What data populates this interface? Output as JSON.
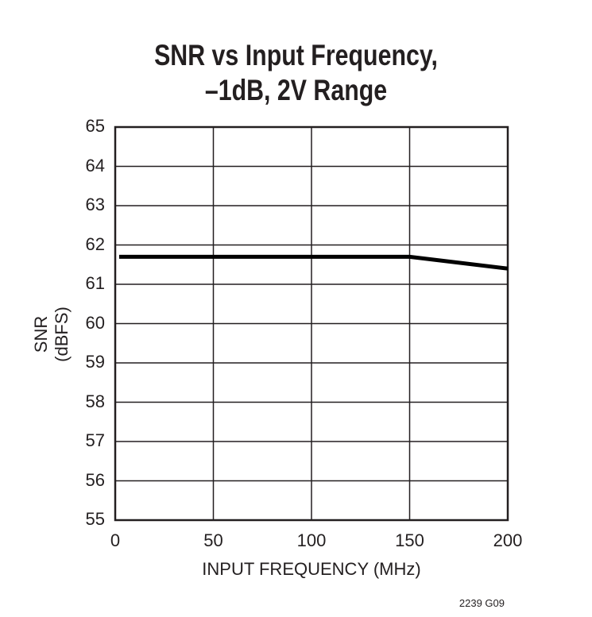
{
  "title_line1": "SNR vs Input Frequency,",
  "title_line2": "–1dB, 2V Range",
  "figure_code": "2239 G09",
  "chart_data": {
    "type": "line",
    "title": "SNR vs Input Frequency, –1dB, 2V Range",
    "xlabel": "INPUT FREQUENCY (MHz)",
    "ylabel": "SNR (dBFS)",
    "xlim": [
      0,
      200
    ],
    "ylim": [
      55,
      65
    ],
    "xticks": [
      "0",
      "50",
      "100",
      "150",
      "200"
    ],
    "yticks": [
      "55",
      "56",
      "57",
      "58",
      "59",
      "60",
      "61",
      "62",
      "63",
      "64",
      "65"
    ],
    "grid": true,
    "series": [
      {
        "name": "SNR",
        "x": [
          2,
          150,
          200
        ],
        "y": [
          61.7,
          61.7,
          61.4
        ]
      }
    ]
  }
}
